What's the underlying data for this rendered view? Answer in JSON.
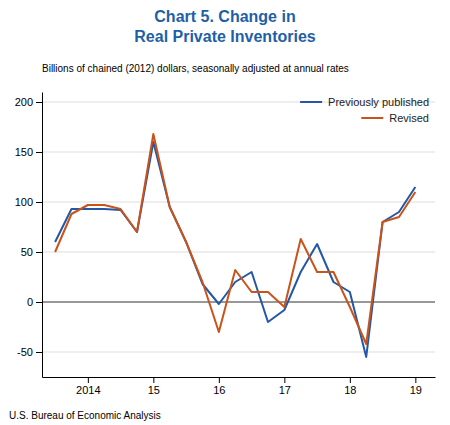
{
  "chart_data": {
    "type": "line",
    "title": [
      "Chart 5. Change in",
      "Real Private Inventories"
    ],
    "subtitle": "Billions of chained (2012) dollars, seasonally adjusted at annual rates",
    "annotations": [
      "U.S. Bureau of Economic Analysis"
    ],
    "x": [
      2013.5,
      2013.75,
      2014.0,
      2014.25,
      2014.5,
      2014.75,
      2015.0,
      2015.25,
      2015.5,
      2015.75,
      2016.0,
      2016.25,
      2016.5,
      2016.75,
      2017.0,
      2017.25,
      2017.5,
      2017.75,
      2018.0,
      2018.25,
      2018.5,
      2018.75,
      2019.0
    ],
    "series": [
      {
        "name": "Previously published",
        "color": "#2457A4",
        "values": [
          60,
          93,
          93,
          93,
          92,
          70,
          160,
          95,
          60,
          18,
          -2,
          20,
          30,
          -20,
          -8,
          30,
          58,
          20,
          10,
          -55,
          80,
          90,
          115
        ]
      },
      {
        "name": "Revised",
        "color": "#C8531B",
        "values": [
          50,
          88,
          97,
          97,
          93,
          70,
          168,
          95,
          60,
          20,
          -30,
          32,
          10,
          10,
          -5,
          63,
          30,
          30,
          -5,
          -42,
          80,
          85,
          110
        ]
      }
    ],
    "xlim": [
      2013.3,
      2019.3
    ],
    "xticks": [
      2014,
      {
        "value": 2015,
        "label": "15"
      },
      {
        "value": 2016,
        "label": "16"
      },
      {
        "value": 2017,
        "label": "17"
      },
      {
        "value": 2018,
        "label": "18"
      },
      {
        "value": 2019,
        "label": "19"
      }
    ],
    "ylim": [
      -75,
      210
    ],
    "yticks": [
      -50,
      0,
      50,
      100,
      150,
      200
    ],
    "grid": true,
    "legend": "upper right"
  }
}
